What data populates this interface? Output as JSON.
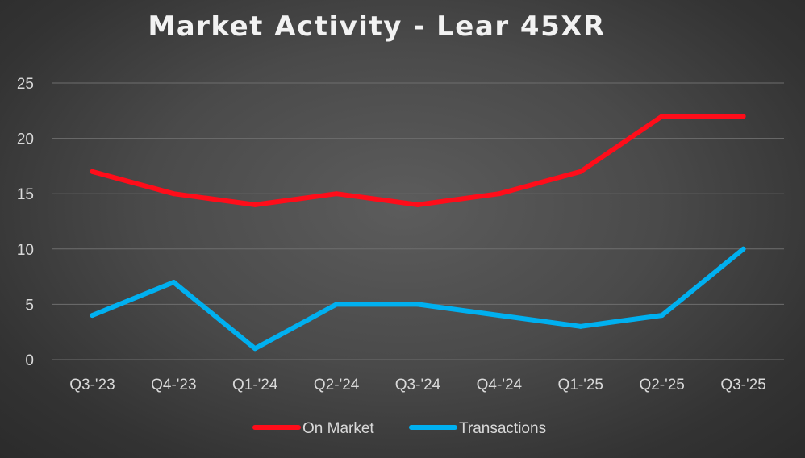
{
  "chart_data": {
    "type": "line",
    "title": "Market Activity - Lear 45XR",
    "categories": [
      "Q3-'23",
      "Q4-'23",
      "Q1-'24",
      "Q2-'24",
      "Q3-'24",
      "Q4-'24",
      "Q1-'25",
      "Q2-'25",
      "Q3-'25"
    ],
    "series": [
      {
        "name": "On Market",
        "color": "#ff0d1a",
        "values": [
          17,
          15,
          14,
          15,
          14,
          15,
          17,
          22,
          22
        ]
      },
      {
        "name": "Transactions",
        "color": "#00b0f0",
        "values": [
          4,
          7,
          1,
          5,
          5,
          4,
          3,
          4,
          10
        ]
      }
    ],
    "yticks": [
      "0",
      "5",
      "10",
      "15",
      "20",
      "25"
    ],
    "ylim": [
      0,
      25
    ],
    "xlabel": "",
    "ylabel": "",
    "grid": true,
    "legend_position": "bottom"
  }
}
